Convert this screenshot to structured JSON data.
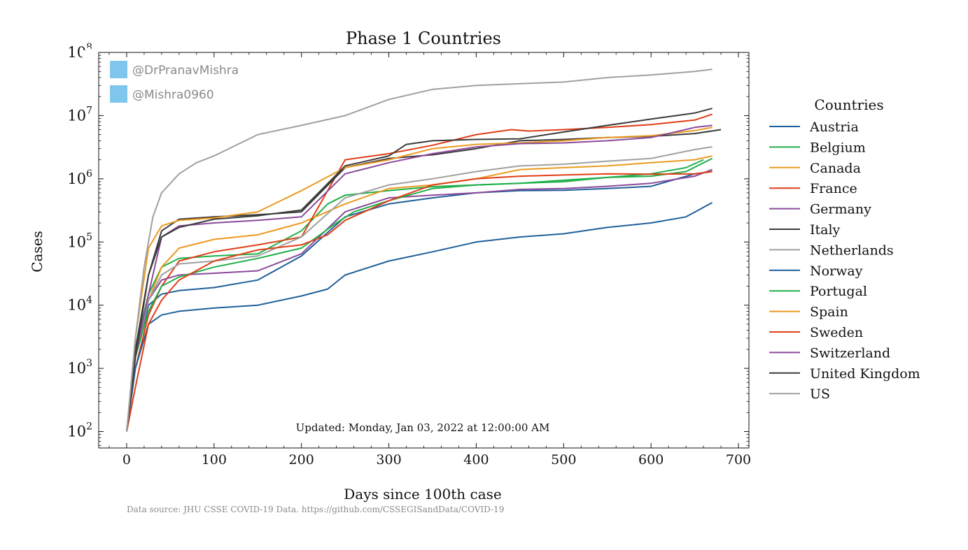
{
  "chart_data": {
    "type": "line",
    "title": "Phase 1 Countries",
    "xlabel": "Days since 100th case",
    "ylabel": "Cases",
    "xlim": [
      -32,
      712
    ],
    "ylim": [
      55,
      100000000
    ],
    "yscale": "log",
    "xticks": [
      0,
      100,
      200,
      300,
      400,
      500,
      600,
      700
    ],
    "xtick_labels": [
      "0",
      "100",
      "200",
      "300",
      "400",
      "500",
      "600",
      "700"
    ],
    "yticks": [
      100,
      1000,
      10000,
      100000,
      1000000,
      10000000,
      100000000
    ],
    "ytick_labels": [
      {
        "base": "10",
        "exp": "2"
      },
      {
        "base": "10",
        "exp": "3"
      },
      {
        "base": "10",
        "exp": "4"
      },
      {
        "base": "10",
        "exp": "5"
      },
      {
        "base": "10",
        "exp": "6"
      },
      {
        "base": "10",
        "exp": "7"
      },
      {
        "base": "10",
        "exp": "8"
      }
    ],
    "legend_title": "Countries",
    "legend_position": "right",
    "annotation": "Updated: Monday, Jan 03, 2022 at 12:00:00 AM",
    "source_note": "Data source: JHU CSSE COVID-19 Data. https://github.com/CSSEGISandData/COVID-19",
    "handles": [
      "@DrPranavMishra",
      "@Mishra0960"
    ],
    "series": [
      {
        "name": "Austria",
        "color": "#1f5f99",
        "x": [
          0,
          10,
          25,
          40,
          60,
          100,
          150,
          200,
          250,
          300,
          350,
          400,
          450,
          500,
          550,
          600,
          650,
          670
        ],
        "y": [
          100,
          1500,
          10000,
          15000,
          17000,
          19000,
          25000,
          60000,
          250000,
          400000,
          500000,
          600000,
          650000,
          660000,
          700000,
          760000,
          1200000,
          1300000
        ]
      },
      {
        "name": "Belgium",
        "color": "#1fb04a",
        "x": [
          0,
          10,
          25,
          40,
          60,
          100,
          150,
          200,
          230,
          250,
          300,
          350,
          400,
          450,
          500,
          550,
          600,
          640,
          660
        ],
        "y": [
          100,
          2000,
          15000,
          40000,
          55000,
          60000,
          65000,
          150000,
          400000,
          550000,
          650000,
          750000,
          800000,
          850000,
          900000,
          1050000,
          1200000,
          1500000,
          2000000
        ]
      },
      {
        "name": "Canada",
        "color": "#eb9a1f",
        "x": [
          0,
          10,
          25,
          40,
          60,
          100,
          150,
          200,
          250,
          300,
          350,
          400,
          450,
          500,
          550,
          600,
          650,
          670
        ],
        "y": [
          100,
          1500,
          12000,
          40000,
          80000,
          110000,
          130000,
          200000,
          400000,
          700000,
          800000,
          1000000,
          1400000,
          1500000,
          1600000,
          1800000,
          2000000,
          2300000
        ]
      },
      {
        "name": "France",
        "color": "#df3f17",
        "x": [
          0,
          10,
          25,
          40,
          60,
          100,
          150,
          200,
          250,
          300,
          350,
          400,
          440,
          460,
          500,
          550,
          600,
          650,
          670
        ],
        "y": [
          100,
          1000,
          7000,
          20000,
          50000,
          70000,
          90000,
          120000,
          2000000,
          2500000,
          3400000,
          5000000,
          6000000,
          5700000,
          6000000,
          6500000,
          7200000,
          8500000,
          10500000
        ]
      },
      {
        "name": "Germany",
        "color": "#8a4a9a",
        "x": [
          0,
          10,
          25,
          40,
          60,
          100,
          150,
          200,
          250,
          300,
          350,
          400,
          450,
          500,
          550,
          600,
          650,
          670
        ],
        "y": [
          100,
          1500,
          12000,
          25000,
          30000,
          32000,
          35000,
          65000,
          300000,
          500000,
          550000,
          600000,
          680000,
          700000,
          760000,
          850000,
          1100000,
          1400000
        ]
      },
      {
        "name": "Italy",
        "color": "#3c3c3c",
        "x": [
          0,
          10,
          25,
          40,
          60,
          100,
          150,
          200,
          250,
          300,
          350,
          400,
          450,
          500,
          550,
          600,
          650,
          680
        ],
        "y": [
          100,
          2000,
          30000,
          150000,
          230000,
          250000,
          270000,
          300000,
          1500000,
          2100000,
          2400000,
          3000000,
          4000000,
          4200000,
          4500000,
          4700000,
          5200000,
          6000000
        ]
      },
      {
        "name": "Netherlands",
        "color": "#a0a0a0",
        "x": [
          0,
          10,
          25,
          40,
          60,
          100,
          150,
          200,
          250,
          300,
          350,
          400,
          450,
          500,
          550,
          600,
          650,
          670
        ],
        "y": [
          100,
          1500,
          12000,
          30000,
          45000,
          50000,
          60000,
          120000,
          500000,
          800000,
          1000000,
          1300000,
          1600000,
          1700000,
          1900000,
          2100000,
          2900000,
          3200000
        ]
      },
      {
        "name": "Norway",
        "color": "#1f5f99",
        "x": [
          0,
          10,
          25,
          40,
          60,
          100,
          150,
          200,
          230,
          250,
          300,
          350,
          400,
          450,
          500,
          550,
          600,
          640,
          670
        ],
        "y": [
          100,
          1000,
          5000,
          7000,
          8000,
          9000,
          10000,
          14000,
          18000,
          30000,
          50000,
          70000,
          100000,
          120000,
          135000,
          170000,
          200000,
          250000,
          420000
        ]
      },
      {
        "name": "Portugal",
        "color": "#1fb04a",
        "x": [
          0,
          10,
          25,
          40,
          60,
          100,
          150,
          200,
          240,
          260,
          300,
          350,
          400,
          450,
          500,
          550,
          600,
          640,
          670
        ],
        "y": [
          100,
          1500,
          8000,
          20000,
          28000,
          40000,
          55000,
          80000,
          200000,
          300000,
          450000,
          700000,
          800000,
          850000,
          950000,
          1050000,
          1100000,
          1300000,
          2100000
        ]
      },
      {
        "name": "Spain",
        "color": "#eb9a1f",
        "x": [
          0,
          10,
          25,
          40,
          60,
          100,
          150,
          200,
          250,
          300,
          350,
          400,
          450,
          500,
          550,
          600,
          650,
          670
        ],
        "y": [
          100,
          3000,
          80000,
          180000,
          220000,
          240000,
          300000,
          650000,
          1500000,
          2000000,
          3000000,
          3500000,
          3700000,
          4000000,
          4500000,
          4800000,
          5800000,
          6500000
        ]
      },
      {
        "name": "Sweden",
        "color": "#df3f17",
        "x": [
          0,
          10,
          25,
          40,
          60,
          100,
          150,
          200,
          230,
          250,
          300,
          350,
          400,
          450,
          500,
          550,
          600,
          650,
          670
        ],
        "y": [
          100,
          500,
          5000,
          12000,
          25000,
          50000,
          75000,
          90000,
          130000,
          220000,
          450000,
          800000,
          1000000,
          1100000,
          1150000,
          1200000,
          1180000,
          1200000,
          1300000
        ]
      },
      {
        "name": "Switzerland",
        "color": "#8a4a9a",
        "x": [
          0,
          10,
          25,
          40,
          60,
          100,
          150,
          200,
          250,
          300,
          350,
          400,
          450,
          500,
          550,
          600,
          650,
          670
        ],
        "y": [
          100,
          1500,
          15000,
          120000,
          180000,
          200000,
          220000,
          250000,
          1200000,
          1800000,
          2500000,
          3200000,
          3600000,
          3700000,
          4000000,
          4500000,
          6500000,
          7000000
        ]
      },
      {
        "name": "United Kingdom",
        "color": "#3c3c3c",
        "x": [
          0,
          10,
          25,
          40,
          60,
          100,
          150,
          200,
          250,
          300,
          320,
          350,
          400,
          450,
          500,
          550,
          600,
          650,
          670
        ],
        "y": [
          100,
          1500,
          30000,
          120000,
          170000,
          230000,
          260000,
          320000,
          1600000,
          2300000,
          3500000,
          4000000,
          4200000,
          4300000,
          5500000,
          7000000,
          8800000,
          11000000,
          13000000
        ]
      },
      {
        "name": "US",
        "color": "#a0a0a0",
        "x": [
          0,
          10,
          20,
          30,
          40,
          60,
          80,
          100,
          150,
          200,
          250,
          300,
          350,
          400,
          450,
          500,
          550,
          600,
          650,
          670
        ],
        "y": [
          100,
          3000,
          40000,
          250000,
          600000,
          1200000,
          1800000,
          2300000,
          5000000,
          7000000,
          10000000,
          18000000,
          26000000,
          30000000,
          32000000,
          34000000,
          40000000,
          44000000,
          50000000,
          54000000
        ]
      }
    ]
  }
}
